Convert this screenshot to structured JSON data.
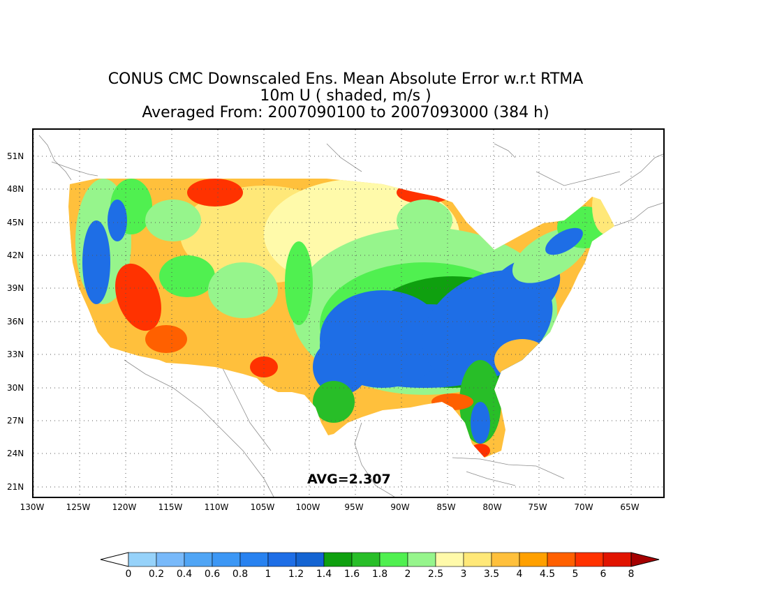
{
  "title": {
    "line1": "CONUS CMC Downscaled Ens. Mean Absolute Error w.r.t RTMA",
    "line2": "10m U ( shaded, m/s )",
    "line3": "Averaged From: 2007090100 to 2007093000 (384 h)"
  },
  "avg_label": "AVG=2.307",
  "lat_labels": [
    "51N",
    "48N",
    "45N",
    "42N",
    "39N",
    "36N",
    "33N",
    "30N",
    "27N",
    "24N",
    "21N"
  ],
  "lon_labels": [
    "130W",
    "125W",
    "120W",
    "115W",
    "110W",
    "105W",
    "100W",
    "95W",
    "90W",
    "85W",
    "80W",
    "75W",
    "70W",
    "65W"
  ],
  "colorbar": {
    "labels": [
      "0",
      "0.2",
      "0.4",
      "0.6",
      "0.8",
      "1",
      "1.2",
      "1.4",
      "1.6",
      "1.8",
      "2",
      "2.5",
      "3",
      "3.5",
      "4",
      "4.5",
      "5",
      "6",
      "8"
    ],
    "colors": [
      "#96d2fa",
      "#78b9fa",
      "#50a5f5",
      "#3c97f5",
      "#2882f0",
      "#1e6ee6",
      "#1464d2",
      "#0fa00f",
      "#28be28",
      "#50f050",
      "#96f58c",
      "#fffaaa",
      "#ffe878",
      "#ffc03c",
      "#ffa000",
      "#ff6000",
      "#ff3200",
      "#e11400",
      "#a50000"
    ],
    "under_color": "#ffffff"
  }
}
